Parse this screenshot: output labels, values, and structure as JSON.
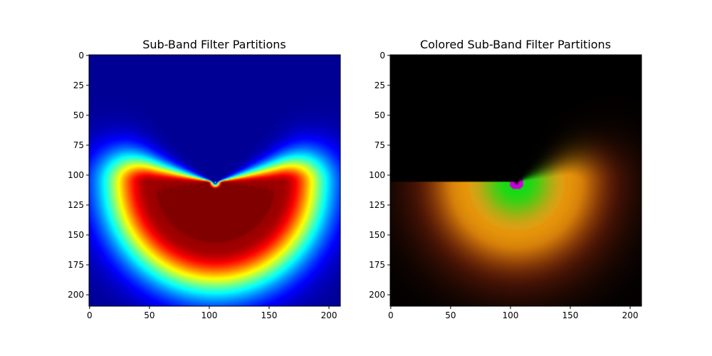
{
  "chart_data": [
    {
      "type": "heatmap",
      "title": "Sub-Band Filter Partitions",
      "colormap": "jet",
      "xlim": [
        0,
        210
      ],
      "ylim": [
        210,
        0
      ],
      "xticks": [
        0,
        50,
        100,
        150,
        200
      ],
      "yticks": [
        0,
        25,
        50,
        75,
        100,
        125,
        150,
        175,
        200
      ],
      "pattern": {
        "center": [
          105,
          106
        ],
        "description_values": {
          "outer_radius_max": 105,
          "peak_region_rows": [
            106,
            175
          ]
        }
      }
    },
    {
      "type": "heatmap",
      "title": "Colored Sub-Band Filter Partitions",
      "colormap": "rgb",
      "xlim": [
        0,
        210
      ],
      "ylim": [
        210,
        0
      ],
      "xticks": [
        0,
        50,
        100,
        150,
        200
      ],
      "yticks": [
        0,
        25,
        50,
        75,
        100,
        125,
        150,
        175,
        200
      ],
      "pattern": {
        "center": [
          105,
          106
        ],
        "band_colors": [
          "#ff00ff",
          "#00e000",
          "#ff8800",
          "#8a1a00"
        ]
      }
    }
  ]
}
